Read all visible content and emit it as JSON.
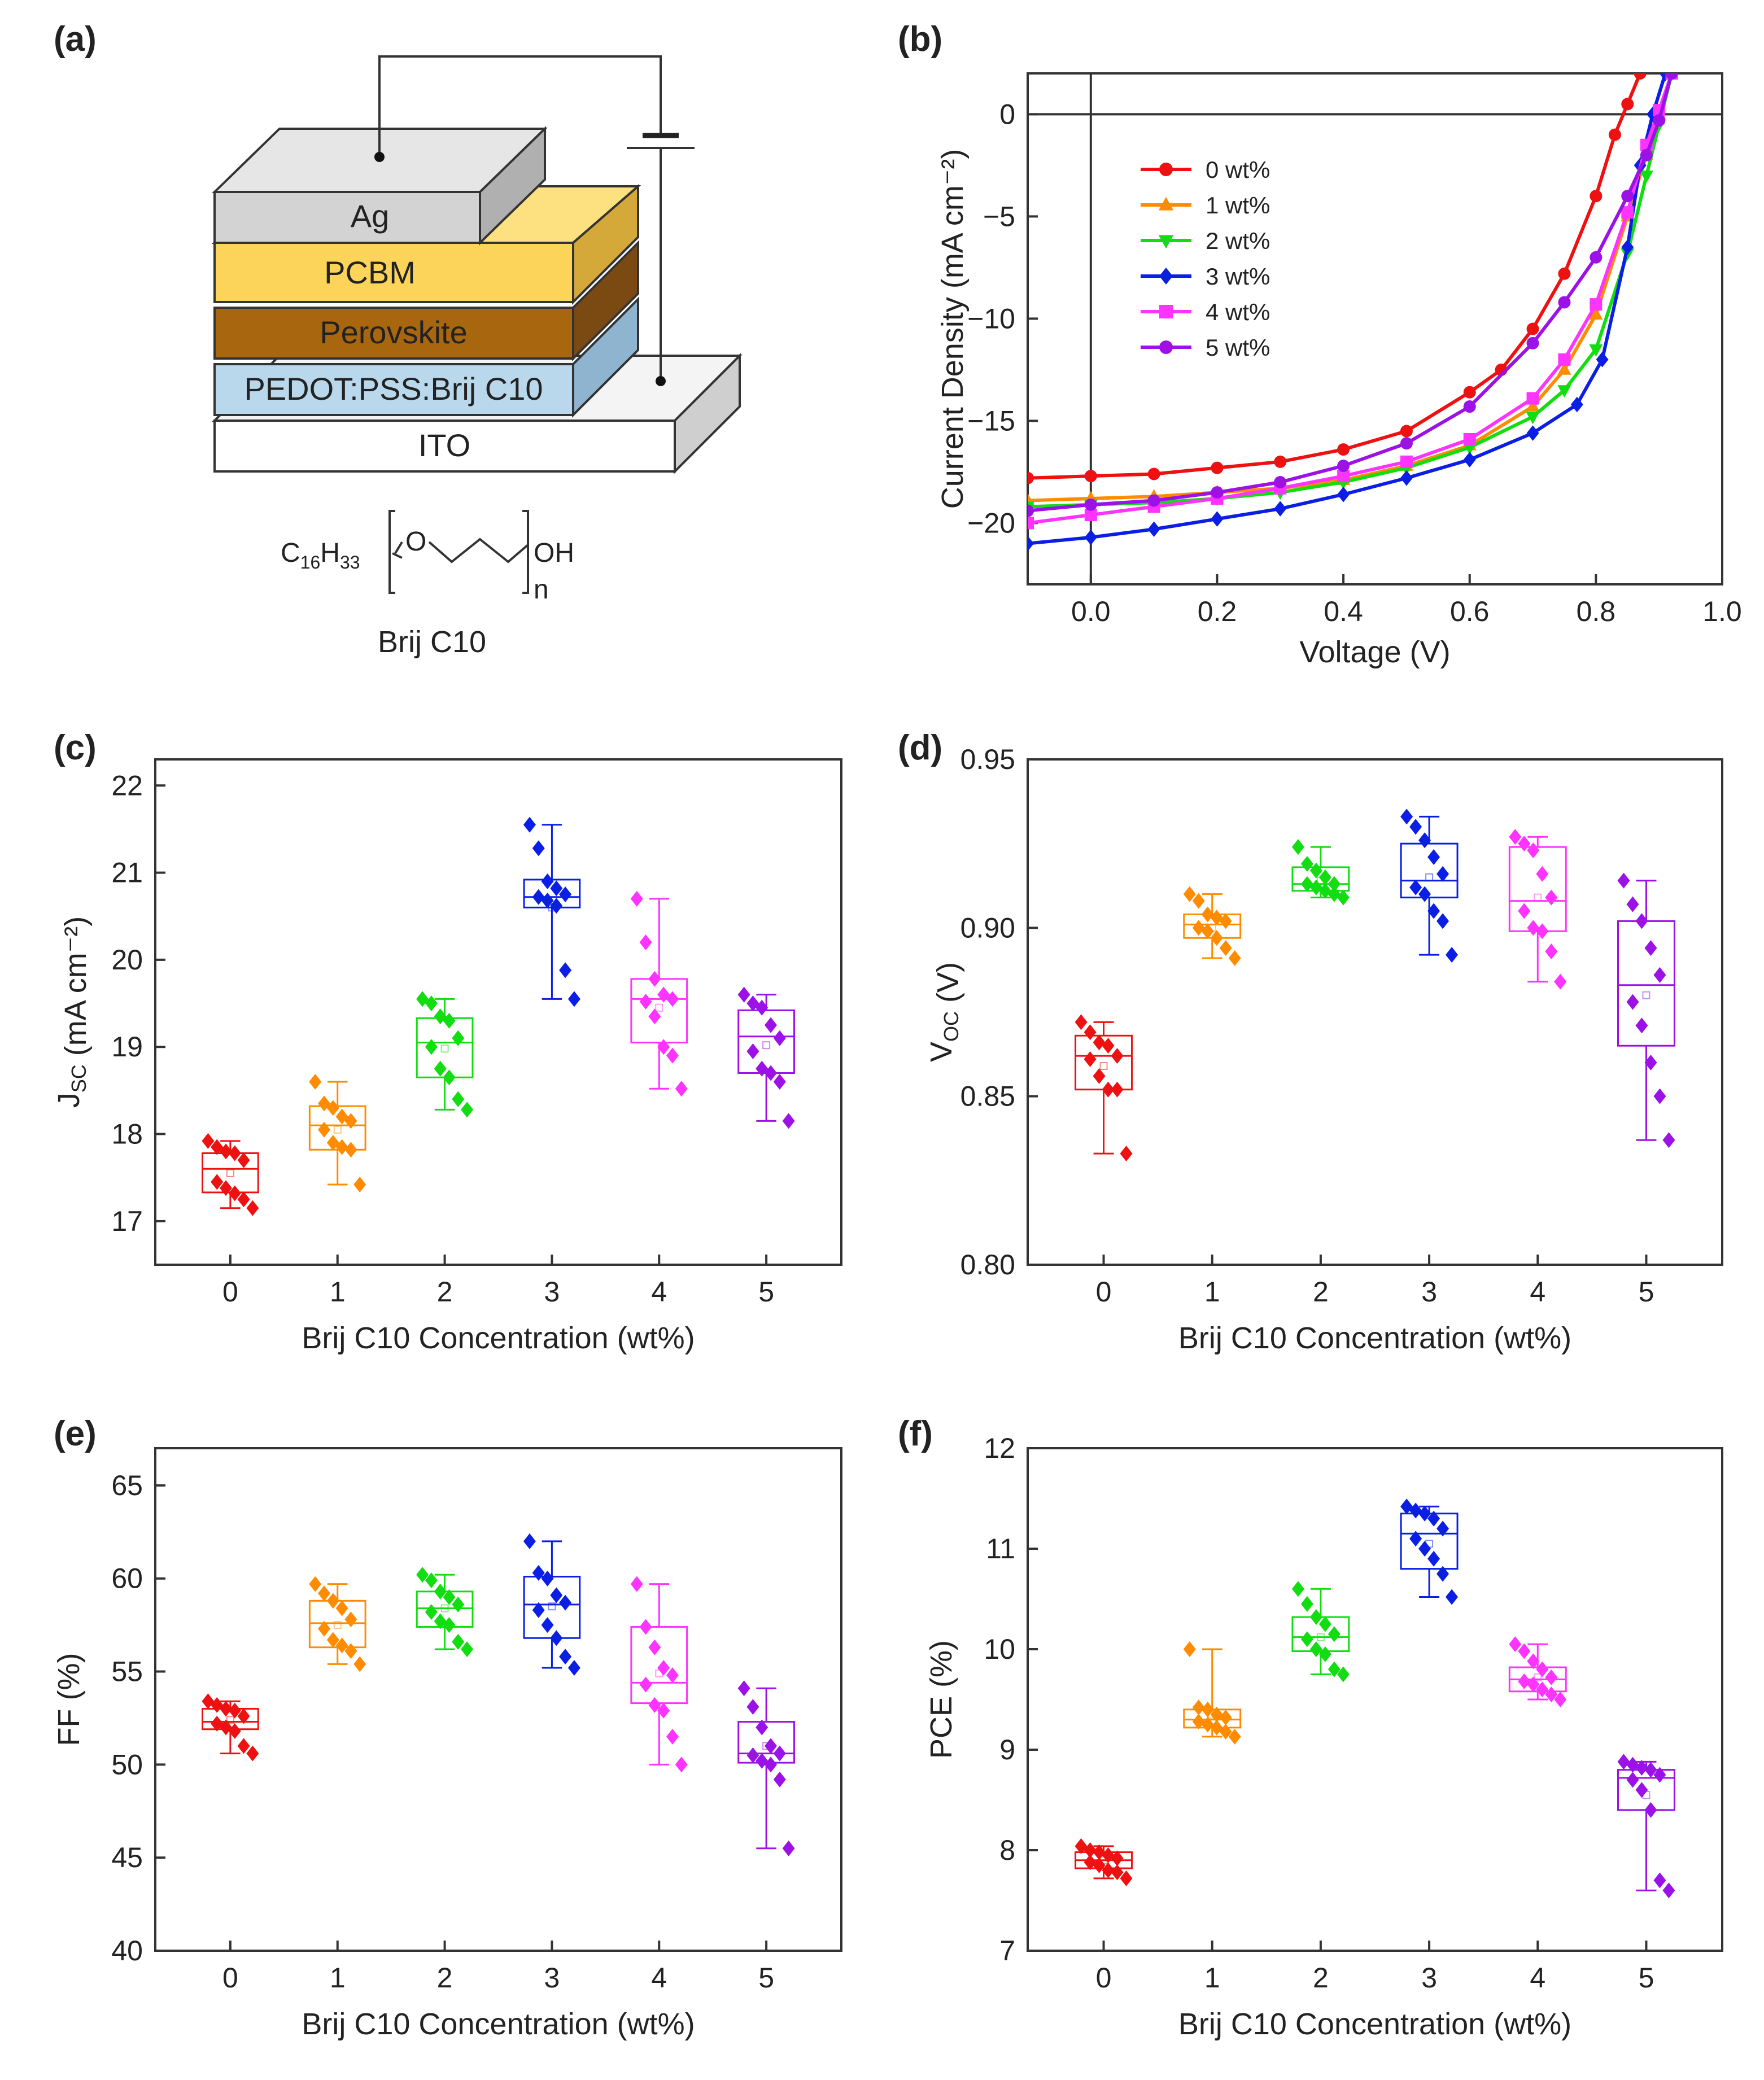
{
  "figure": {
    "panel_labels": [
      "(a)",
      "(b)",
      "(c)",
      "(d)",
      "(e)",
      "(f)"
    ],
    "device_layers": [
      "Ag",
      "PCBM",
      "Perovskite",
      "PEDOT:PSS:Brij C10",
      "ITO"
    ],
    "molecule": {
      "left": "C",
      "left_sub1": "16",
      "h": "H",
      "left_sub2": "33",
      "o": "O",
      "oh": "OH",
      "n": "n",
      "name": "Brij C10"
    },
    "colors": [
      "#ee1111",
      "#ff8c00",
      "#11dd11",
      "#0a1ee6",
      "#ff33ff",
      "#9b11e6"
    ]
  },
  "chart_data": [
    {
      "panel": "(b)",
      "type": "line",
      "xlabel": "Voltage (V)",
      "ylabel": "Current Density (mA cm⁻²)",
      "xlim": [
        -0.1,
        1.0
      ],
      "ylim": [
        -23,
        2
      ],
      "xticks": [
        "0.0",
        "0.2",
        "0.4",
        "0.6",
        "0.8",
        "1.0"
      ],
      "yticks": [
        "0",
        "-5",
        "-10",
        "-15",
        "-20"
      ],
      "legend_position": "upper-left",
      "series": [
        {
          "name": "0 wt%",
          "marker": "circle",
          "x": [
            -0.1,
            0.0,
            0.1,
            0.2,
            0.3,
            0.4,
            0.5,
            0.6,
            0.65,
            0.7,
            0.75,
            0.8,
            0.83,
            0.85,
            0.87
          ],
          "y": [
            -17.8,
            -17.7,
            -17.6,
            -17.3,
            -17.0,
            -16.4,
            -15.5,
            -13.6,
            -12.5,
            -10.5,
            -7.8,
            -4.0,
            -1.0,
            0.5,
            2.0
          ]
        },
        {
          "name": "1 wt%",
          "marker": "triangle",
          "x": [
            -0.1,
            0.0,
            0.1,
            0.2,
            0.3,
            0.4,
            0.5,
            0.6,
            0.7,
            0.75,
            0.8,
            0.85,
            0.88,
            0.9,
            0.92
          ],
          "y": [
            -18.9,
            -18.8,
            -18.7,
            -18.5,
            -18.3,
            -17.9,
            -17.2,
            -16.2,
            -14.3,
            -12.5,
            -9.8,
            -5.0,
            -2.0,
            0.0,
            2.0
          ]
        },
        {
          "name": "2 wt%",
          "marker": "triangle-down",
          "x": [
            -0.1,
            0.0,
            0.1,
            0.2,
            0.3,
            0.4,
            0.5,
            0.6,
            0.7,
            0.75,
            0.8,
            0.85,
            0.88,
            0.9,
            0.92
          ],
          "y": [
            -19.2,
            -19.1,
            -19.0,
            -18.8,
            -18.5,
            -18.0,
            -17.3,
            -16.3,
            -14.8,
            -13.5,
            -11.5,
            -6.8,
            -3.0,
            -0.5,
            2.0
          ]
        },
        {
          "name": "3 wt%",
          "marker": "diamond",
          "x": [
            -0.1,
            0.0,
            0.1,
            0.2,
            0.3,
            0.4,
            0.5,
            0.6,
            0.7,
            0.77,
            0.81,
            0.85,
            0.87,
            0.89,
            0.91
          ],
          "y": [
            -21.0,
            -20.7,
            -20.3,
            -19.8,
            -19.3,
            -18.6,
            -17.8,
            -16.9,
            -15.6,
            -14.2,
            -12.0,
            -6.5,
            -2.5,
            0.0,
            2.0
          ]
        },
        {
          "name": "4 wt%",
          "marker": "square",
          "x": [
            -0.1,
            0.0,
            0.1,
            0.2,
            0.3,
            0.4,
            0.5,
            0.6,
            0.7,
            0.75,
            0.8,
            0.85,
            0.88,
            0.9,
            0.92
          ],
          "y": [
            -20.0,
            -19.6,
            -19.2,
            -18.8,
            -18.3,
            -17.7,
            -17.0,
            -15.9,
            -13.9,
            -12.0,
            -9.3,
            -4.8,
            -1.5,
            0.2,
            2.0
          ]
        },
        {
          "name": "5 wt%",
          "marker": "circle",
          "x": [
            -0.1,
            0.0,
            0.1,
            0.2,
            0.3,
            0.4,
            0.5,
            0.6,
            0.7,
            0.75,
            0.8,
            0.85,
            0.88,
            0.9,
            0.92
          ],
          "y": [
            -19.4,
            -19.1,
            -18.9,
            -18.5,
            -18.0,
            -17.2,
            -16.1,
            -14.3,
            -11.2,
            -9.2,
            -7.0,
            -4.0,
            -2.0,
            -0.3,
            2.0
          ]
        }
      ]
    },
    {
      "panel": "(c)",
      "type": "box",
      "xlabel": "Brij C10 Concentration (wt%)",
      "ylabel": "J<sub>SC</sub> (mA cm⁻²)",
      "ylim": [
        16.5,
        22.3
      ],
      "categories": [
        "0",
        "1",
        "2",
        "3",
        "4",
        "5"
      ],
      "yticks": [
        "17",
        "18",
        "19",
        "20",
        "21",
        "22"
      ],
      "boxes": [
        {
          "q1": 17.33,
          "median": 17.6,
          "q3": 17.78,
          "whisker_low": 17.15,
          "whisker_high": 17.92,
          "mean": 17.55,
          "points": [
            17.92,
            17.85,
            17.8,
            17.78,
            17.7,
            17.45,
            17.38,
            17.32,
            17.25,
            17.15
          ]
        },
        {
          "q1": 17.82,
          "median": 18.1,
          "q3": 18.32,
          "whisker_low": 17.42,
          "whisker_high": 18.6,
          "mean": 18.05,
          "points": [
            18.6,
            18.35,
            18.3,
            18.2,
            18.15,
            18.05,
            17.9,
            17.85,
            17.82,
            17.42
          ]
        },
        {
          "q1": 18.65,
          "median": 19.05,
          "q3": 19.33,
          "whisker_low": 18.28,
          "whisker_high": 19.55,
          "mean": 18.98,
          "points": [
            19.55,
            19.5,
            19.35,
            19.3,
            19.1,
            19.0,
            18.75,
            18.65,
            18.4,
            18.28
          ]
        },
        {
          "q1": 20.6,
          "median": 20.72,
          "q3": 20.92,
          "whisker_low": 19.55,
          "whisker_high": 21.55,
          "mean": 20.6,
          "points": [
            21.55,
            21.28,
            20.9,
            20.82,
            20.75,
            20.72,
            20.68,
            20.62,
            19.88,
            19.55
          ]
        },
        {
          "q1": 19.05,
          "median": 19.55,
          "q3": 19.78,
          "whisker_low": 18.52,
          "whisker_high": 20.7,
          "mean": 19.45,
          "points": [
            20.7,
            20.2,
            19.78,
            19.6,
            19.55,
            19.52,
            19.35,
            19.0,
            18.9,
            18.52
          ]
        },
        {
          "q1": 18.7,
          "median": 19.12,
          "q3": 19.42,
          "whisker_low": 18.15,
          "whisker_high": 19.6,
          "mean": 19.02,
          "points": [
            19.6,
            19.5,
            19.45,
            19.25,
            19.1,
            18.95,
            18.75,
            18.7,
            18.6,
            18.15
          ]
        }
      ]
    },
    {
      "panel": "(d)",
      "type": "box",
      "xlabel": "Brij C10 Concentration (wt%)",
      "ylabel": "V<sub>OC</sub> (V)",
      "ylim": [
        0.8,
        0.95
      ],
      "categories": [
        "0",
        "1",
        "2",
        "3",
        "4",
        "5"
      ],
      "yticks": [
        "0.80",
        "0.85",
        "0.90",
        "0.95"
      ],
      "boxes": [
        {
          "q1": 0.852,
          "median": 0.862,
          "q3": 0.868,
          "whisker_low": 0.833,
          "whisker_high": 0.872,
          "mean": 0.859,
          "points": [
            0.872,
            0.869,
            0.866,
            0.865,
            0.862,
            0.861,
            0.856,
            0.852,
            0.852,
            0.833
          ]
        },
        {
          "q1": 0.897,
          "median": 0.901,
          "q3": 0.904,
          "whisker_low": 0.891,
          "whisker_high": 0.91,
          "mean": 0.9,
          "points": [
            0.91,
            0.908,
            0.904,
            0.903,
            0.902,
            0.9,
            0.899,
            0.897,
            0.894,
            0.891
          ]
        },
        {
          "q1": 0.911,
          "median": 0.913,
          "q3": 0.918,
          "whisker_low": 0.909,
          "whisker_high": 0.924,
          "mean": 0.914,
          "points": [
            0.924,
            0.919,
            0.917,
            0.915,
            0.913,
            0.913,
            0.912,
            0.911,
            0.91,
            0.909
          ]
        },
        {
          "q1": 0.909,
          "median": 0.914,
          "q3": 0.925,
          "whisker_low": 0.892,
          "whisker_high": 0.933,
          "mean": 0.915,
          "points": [
            0.933,
            0.93,
            0.926,
            0.921,
            0.916,
            0.912,
            0.91,
            0.905,
            0.902,
            0.892
          ]
        },
        {
          "q1": 0.899,
          "median": 0.908,
          "q3": 0.924,
          "whisker_low": 0.884,
          "whisker_high": 0.927,
          "mean": 0.909,
          "points": [
            0.927,
            0.925,
            0.923,
            0.916,
            0.909,
            0.905,
            0.9,
            0.899,
            0.893,
            0.884
          ]
        },
        {
          "q1": 0.865,
          "median": 0.883,
          "q3": 0.902,
          "whisker_low": 0.837,
          "whisker_high": 0.914,
          "mean": 0.88,
          "points": [
            0.914,
            0.907,
            0.902,
            0.894,
            0.886,
            0.878,
            0.871,
            0.86,
            0.85,
            0.837
          ]
        }
      ]
    },
    {
      "panel": "(e)",
      "type": "box",
      "xlabel": "Brij C10 Concentration (wt%)",
      "ylabel": "FF (%)",
      "ylim": [
        40,
        67
      ],
      "categories": [
        "0",
        "1",
        "2",
        "3",
        "4",
        "5"
      ],
      "yticks": [
        "40",
        "45",
        "50",
        "55",
        "60",
        "65"
      ],
      "boxes": [
        {
          "q1": 51.9,
          "median": 52.3,
          "q3": 53.0,
          "whisker_low": 50.6,
          "whisker_high": 53.4,
          "mean": 52.4,
          "points": [
            53.4,
            53.2,
            53.0,
            52.9,
            52.6,
            52.2,
            52.0,
            51.8,
            51.0,
            50.6
          ]
        },
        {
          "q1": 56.3,
          "median": 57.6,
          "q3": 58.8,
          "whisker_low": 55.4,
          "whisker_high": 59.7,
          "mean": 57.5,
          "points": [
            59.7,
            59.2,
            58.8,
            58.4,
            57.8,
            57.3,
            56.7,
            56.4,
            56.1,
            55.4
          ]
        },
        {
          "q1": 57.4,
          "median": 58.4,
          "q3": 59.3,
          "whisker_low": 56.2,
          "whisker_high": 60.2,
          "mean": 58.4,
          "points": [
            60.2,
            59.9,
            59.3,
            59.0,
            58.6,
            58.2,
            57.7,
            57.5,
            56.6,
            56.2
          ]
        },
        {
          "q1": 56.8,
          "median": 58.6,
          "q3": 60.1,
          "whisker_low": 55.2,
          "whisker_high": 62.0,
          "mean": 58.5,
          "points": [
            62.0,
            60.3,
            60.0,
            59.1,
            58.7,
            58.3,
            57.5,
            56.8,
            55.8,
            55.2
          ]
        },
        {
          "q1": 53.3,
          "median": 54.4,
          "q3": 57.4,
          "whisker_low": 50.0,
          "whisker_high": 59.7,
          "mean": 54.9,
          "points": [
            59.7,
            57.4,
            56.3,
            55.2,
            54.8,
            54.3,
            53.2,
            52.9,
            51.5,
            50.0
          ]
        },
        {
          "q1": 50.1,
          "median": 50.6,
          "q3": 52.3,
          "whisker_low": 45.5,
          "whisker_high": 54.1,
          "mean": 51.0,
          "points": [
            54.1,
            53.1,
            52.0,
            51.0,
            50.6,
            50.5,
            50.2,
            50.0,
            49.2,
            45.5
          ]
        }
      ]
    },
    {
      "panel": "(f)",
      "type": "box",
      "xlabel": "Brij C10 Concentration (wt%)",
      "ylabel": "PCE (%)",
      "ylim": [
        7,
        12
      ],
      "categories": [
        "0",
        "1",
        "2",
        "3",
        "4",
        "5"
      ],
      "yticks": [
        "7",
        "8",
        "9",
        "10",
        "11",
        "12"
      ],
      "boxes": [
        {
          "q1": 7.82,
          "median": 7.9,
          "q3": 7.98,
          "whisker_low": 7.72,
          "whisker_high": 8.04,
          "mean": 7.9,
          "points": [
            8.04,
            8.0,
            7.98,
            7.95,
            7.92,
            7.88,
            7.85,
            7.8,
            7.78,
            7.72
          ]
        },
        {
          "q1": 9.22,
          "median": 9.3,
          "q3": 9.4,
          "whisker_low": 9.13,
          "whisker_high": 10.0,
          "mean": 9.35,
          "points": [
            10.0,
            9.42,
            9.4,
            9.35,
            9.32,
            9.28,
            9.25,
            9.22,
            9.18,
            9.13
          ]
        },
        {
          "q1": 9.98,
          "median": 10.12,
          "q3": 10.32,
          "whisker_low": 9.75,
          "whisker_high": 10.6,
          "mean": 10.12,
          "points": [
            10.6,
            10.45,
            10.32,
            10.25,
            10.15,
            10.1,
            10.0,
            9.95,
            9.8,
            9.75
          ]
        },
        {
          "q1": 10.8,
          "median": 11.15,
          "q3": 11.35,
          "whisker_low": 10.52,
          "whisker_high": 11.42,
          "mean": 11.05,
          "points": [
            11.42,
            11.38,
            11.35,
            11.3,
            11.2,
            11.1,
            11.0,
            10.9,
            10.75,
            10.52
          ]
        },
        {
          "q1": 9.58,
          "median": 9.7,
          "q3": 9.82,
          "whisker_low": 9.5,
          "whisker_high": 10.05,
          "mean": 9.72,
          "points": [
            10.05,
            9.98,
            9.88,
            9.8,
            9.72,
            9.68,
            9.65,
            9.6,
            9.55,
            9.5
          ]
        },
        {
          "q1": 8.4,
          "median": 8.72,
          "q3": 8.8,
          "whisker_low": 7.6,
          "whisker_high": 8.88,
          "mean": 8.55,
          "points": [
            8.88,
            8.85,
            8.82,
            8.8,
            8.75,
            8.7,
            8.6,
            8.4,
            7.7,
            7.6
          ]
        }
      ]
    }
  ]
}
